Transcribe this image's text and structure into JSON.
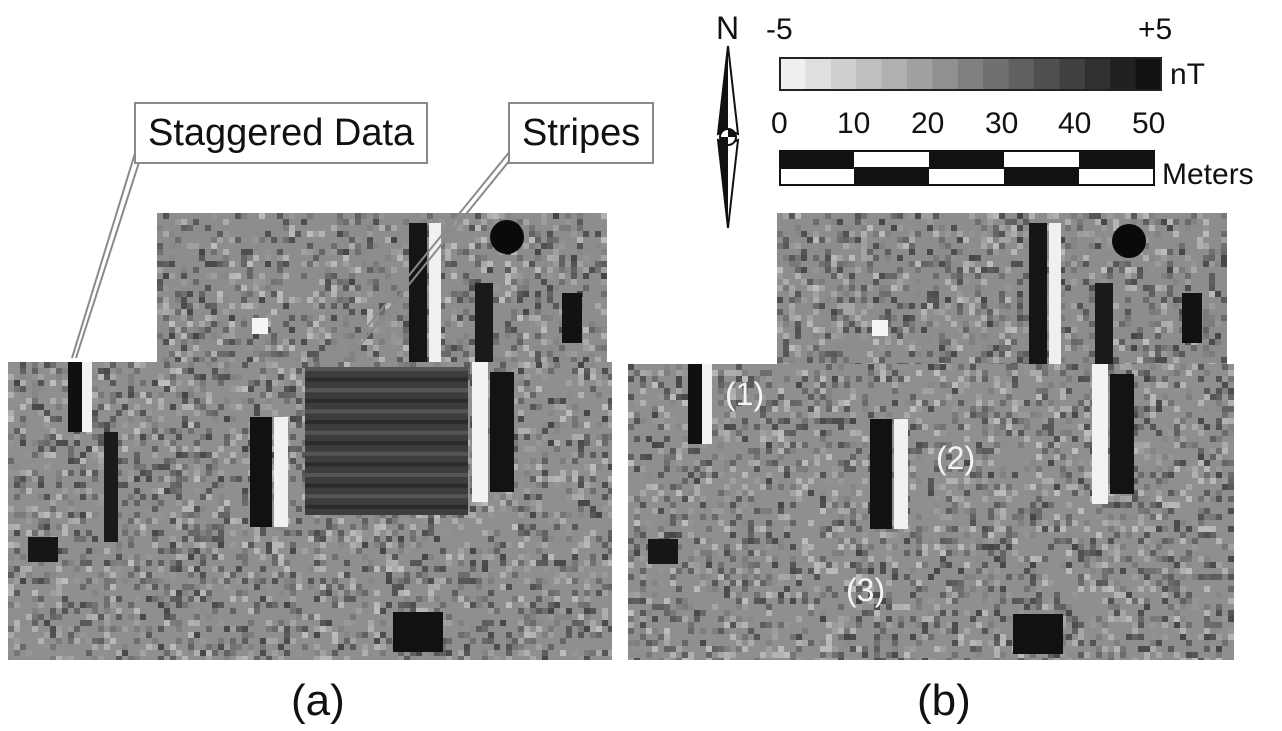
{
  "callouts": {
    "staggered": "Staggered Data",
    "stripes": "Stripes"
  },
  "north_arrow": {
    "label": "N"
  },
  "color_scale": {
    "min_label": "-5",
    "max_label": "+5",
    "unit": "nT",
    "gradient_from": "#efefef",
    "gradient_to": "#111111",
    "steps": 15
  },
  "distance_scale": {
    "ticks": [
      "0",
      "10",
      "20",
      "30",
      "40",
      "50"
    ],
    "unit": "Meters"
  },
  "panels": {
    "a": {
      "label": "(a)"
    },
    "b": {
      "label": "(b)",
      "features": [
        "(1)",
        "(2)",
        "(3)"
      ]
    }
  }
}
